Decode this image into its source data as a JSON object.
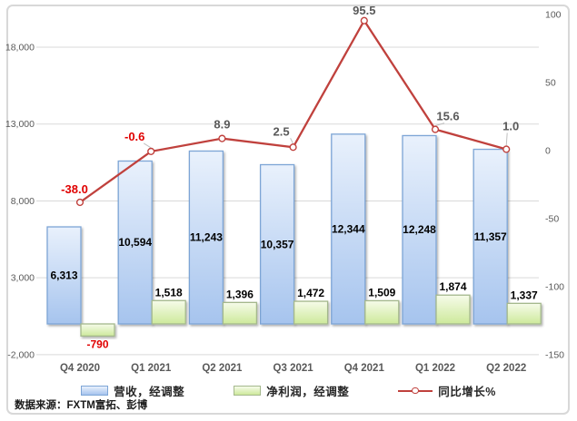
{
  "source_note": "数据来源：FXTM富拓、彭博",
  "legend": [
    {
      "label": "营收，经调整",
      "swatch": "blue-bar"
    },
    {
      "label": "净利润，经调整",
      "swatch": "green-bar"
    },
    {
      "label": "同比增长%",
      "swatch": "red-line"
    }
  ],
  "colors": {
    "revenue_fill_top": "#e9f1fc",
    "revenue_fill_bottom": "#a6c4ee",
    "revenue_border": "#7da5d6",
    "net_profit_fill_top": "#f6fbea",
    "net_profit_fill_bottom": "#cde99b",
    "net_profit_border": "#a4b88c",
    "yoy_line": "#c0413d",
    "negative_label": "#e00000",
    "positive_line_label": "#595959",
    "bar_label": "#000000",
    "axis_label": "#595959",
    "gridline": "#d9d9d9"
  },
  "chart_data": {
    "type": "bar+line combo",
    "title": "",
    "categories": [
      "Q4 2020",
      "Q1 2021",
      "Q2 2021",
      "Q3 2021",
      "Q4 2021",
      "Q1 2022",
      "Q2 2022"
    ],
    "series": [
      {
        "name": "营收，经调整",
        "type": "bar",
        "axis": "left",
        "values": [
          6313,
          10594,
          11243,
          10357,
          12344,
          12248,
          11357
        ],
        "labels": [
          "6,313",
          "10,594",
          "11,243",
          "10,357",
          "12,344",
          "12,248",
          "11,357"
        ]
      },
      {
        "name": "净利润，经调整",
        "type": "bar",
        "axis": "left",
        "values": [
          -790,
          1518,
          1396,
          1472,
          1509,
          1874,
          1337
        ],
        "labels": [
          "-790",
          "1,518",
          "1,396",
          "1,472",
          "1,509",
          "1,874",
          "1,337"
        ]
      },
      {
        "name": "同比增长%",
        "type": "line",
        "axis": "right",
        "values": [
          -38.0,
          -0.6,
          8.9,
          2.5,
          95.5,
          15.6,
          1.0
        ],
        "labels": [
          "-38.0",
          "-0.6",
          "8.9",
          "2.5",
          "95.5",
          "15.6",
          "1.0"
        ]
      }
    ],
    "left_axis": {
      "min": -2000,
      "ticks": [
        {
          "value": 18000,
          "label": "18,000"
        },
        {
          "value": 13000,
          "label": "13,000"
        },
        {
          "value": 8000,
          "label": "8,000"
        },
        {
          "value": 3000,
          "label": "3,000"
        },
        {
          "value": -2000,
          "label": "-2,000"
        }
      ]
    },
    "right_axis": {
      "min": -150,
      "max": 100,
      "ticks": [
        {
          "value": 100,
          "label": "100"
        },
        {
          "value": 50,
          "label": "50"
        },
        {
          "value": 0,
          "label": "0"
        },
        {
          "value": -50,
          "label": "-50"
        },
        {
          "value": -100,
          "label": "-100"
        },
        {
          "value": -150,
          "label": "-150"
        }
      ]
    },
    "grid": true,
    "legend_position": "bottom"
  }
}
